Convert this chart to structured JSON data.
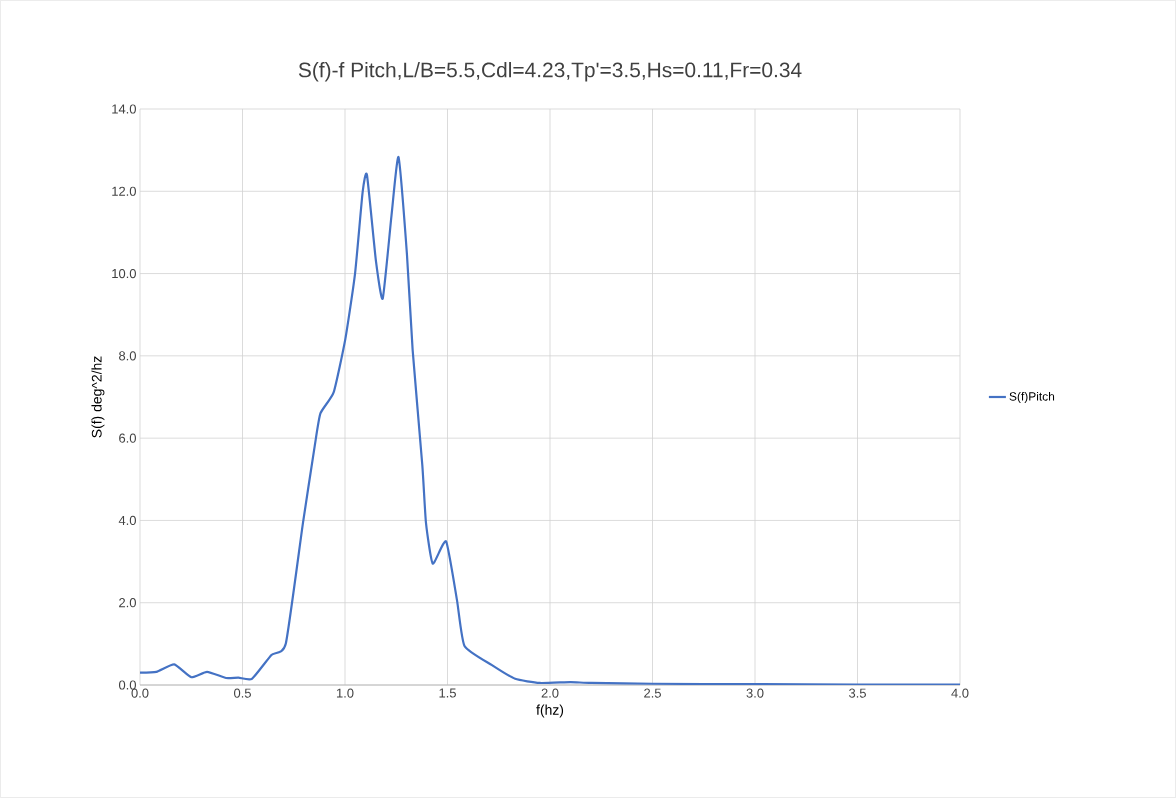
{
  "chart_data": {
    "type": "line",
    "title": "S(f)-f Pitch,L/B=5.5,Cdl=4.23,Tp'=3.5,Hs=0.11,Fr=0.34",
    "xlabel": "f(hz)",
    "ylabel": "S(f) deg^2/hz",
    "xlim": [
      0,
      4
    ],
    "ylim": [
      0,
      14
    ],
    "xticks": [
      {
        "value": 0,
        "label": "0.0"
      },
      {
        "value": 0.5,
        "label": "0.5"
      },
      {
        "value": 1,
        "label": "1.0"
      },
      {
        "value": 1.5,
        "label": "1.5"
      },
      {
        "value": 2,
        "label": "2.0"
      },
      {
        "value": 2.5,
        "label": "2.5"
      },
      {
        "value": 3,
        "label": "3.0"
      },
      {
        "value": 3.5,
        "label": "3.5"
      },
      {
        "value": 4,
        "label": "4.0"
      }
    ],
    "yticks": [
      {
        "value": 0,
        "label": "0.0"
      },
      {
        "value": 2,
        "label": "2.0"
      },
      {
        "value": 4,
        "label": "4.0"
      },
      {
        "value": 6,
        "label": "6.0"
      },
      {
        "value": 8,
        "label": "8.0"
      },
      {
        "value": 10,
        "label": "10.0"
      },
      {
        "value": 12,
        "label": "12.0"
      },
      {
        "value": 14,
        "label": "14.0"
      }
    ],
    "grid": true,
    "legend": "right",
    "marker": "none",
    "line_style": "solid",
    "series": [
      {
        "name": "S(f)Pitch",
        "color": "#4472c4",
        "x": [
          0,
          0.08,
          0.167,
          0.25,
          0.327,
          0.42,
          0.48,
          0.546,
          0.641,
          0.711,
          0.795,
          0.852,
          0.88,
          0.945,
          1.002,
          1.049,
          1.086,
          1.107,
          1.151,
          1.184,
          1.227,
          1.261,
          1.302,
          1.33,
          1.377,
          1.395,
          1.428,
          1.493,
          1.546,
          1.583,
          1.715,
          1.83,
          1.95,
          2.1,
          2.2,
          2.5,
          3.0,
          3.5,
          4.0
        ],
        "values": [
          0.3,
          0.32,
          0.5,
          0.19,
          0.32,
          0.17,
          0.18,
          0.15,
          0.73,
          1.0,
          3.94,
          5.8,
          6.6,
          7.12,
          8.42,
          10.0,
          11.98,
          12.4,
          10.3,
          9.39,
          11.42,
          12.83,
          10.48,
          8.14,
          5.35,
          3.94,
          2.95,
          3.49,
          2.07,
          0.95,
          0.49,
          0.15,
          0.05,
          0.07,
          0.05,
          0.03,
          0.02,
          0.01,
          0.01
        ]
      }
    ]
  }
}
